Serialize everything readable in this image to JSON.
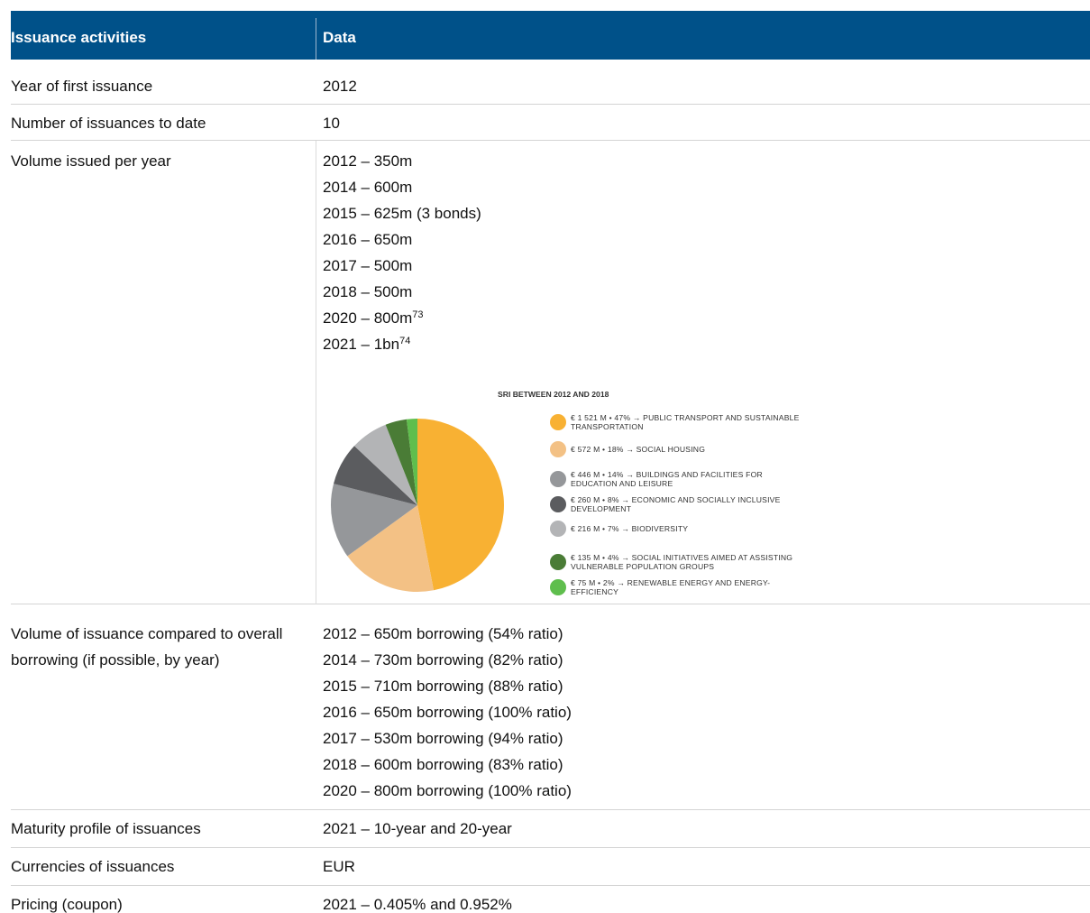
{
  "table": {
    "header": [
      "Issuance activities",
      "Data"
    ],
    "rows": [
      {
        "label": "Year of first issuance",
        "lines": [
          {
            "text": "2012"
          }
        ]
      },
      {
        "label": "Number of issuances to date",
        "lines": [
          {
            "text": "10"
          }
        ]
      },
      {
        "label": "Volume issued per year",
        "lines": [
          {
            "text": "2012 – 350m"
          },
          {
            "text": "2014 – 600m"
          },
          {
            "text": "2015 – 625m (3 bonds)"
          },
          {
            "text": "2016 – 650m"
          },
          {
            "text": "2017 – 500m"
          },
          {
            "text": "2018 – 500m"
          },
          {
            "text": "2020 – 800m",
            "footnote": "73"
          },
          {
            "text": "2021 – 1bn",
            "footnote": "74"
          }
        ]
      },
      {
        "label": "Volume of issuance compared to overall borrowing (if possible, by year)",
        "lines": [
          {
            "text": "2012 – 650m borrowing (54% ratio)"
          },
          {
            "text": "2014 – 730m borrowing (82% ratio)"
          },
          {
            "text": "2015 – 710m borrowing (88% ratio)"
          },
          {
            "text": "2016 – 650m borrowing (100% ratio)"
          },
          {
            "text": "2017 – 530m borrowing (94% ratio)"
          },
          {
            "text": "2018 – 600m borrowing (83% ratio)"
          },
          {
            "text": "2020 – 800m borrowing (100% ratio)"
          }
        ]
      },
      {
        "label": "Maturity profile of issuances",
        "lines": [
          {
            "text": "2021 – 10-year and 20-year"
          }
        ]
      },
      {
        "label": "Currencies of issuances",
        "lines": [
          {
            "text": "EUR"
          }
        ]
      },
      {
        "label": "Pricing (coupon)",
        "lines": [
          {
            "text": "2021 – 0.405% and 0.952%"
          }
        ]
      }
    ]
  },
  "chart_data": {
    "type": "pie",
    "title": "SRI BETWEEN 2012 AND 2018",
    "categories": [
      "€ 1 521 M • 47% → PUBLIC TRANSPORT AND SUSTAINABLE TRANSPORTATION",
      "€ 572 M • 18% → SOCIAL HOUSING",
      "€ 446 M • 14% → BUILDINGS AND FACILITIES FOR EDUCATION AND LEISURE",
      "€ 260 M • 8% → ECONOMIC AND SOCIALLY INCLUSIVE DEVELOPMENT",
      "€ 216 M • 7% → BIODIVERSITY",
      "€ 135 M • 4% → SOCIAL INITIATIVES AIMED AT ASSISTING VULNERABLE POPULATION GROUPS",
      "€ 75 M • 2% → RENEWABLE ENERGY AND ENERGY-EFFICIENCY"
    ],
    "values": [
      47,
      18,
      14,
      8,
      7,
      4,
      2
    ],
    "colors": [
      "#f8b133",
      "#f3c185",
      "#95979a",
      "#5b5c5f",
      "#b3b4b6",
      "#4a7c36",
      "#5fbe4d"
    ]
  }
}
